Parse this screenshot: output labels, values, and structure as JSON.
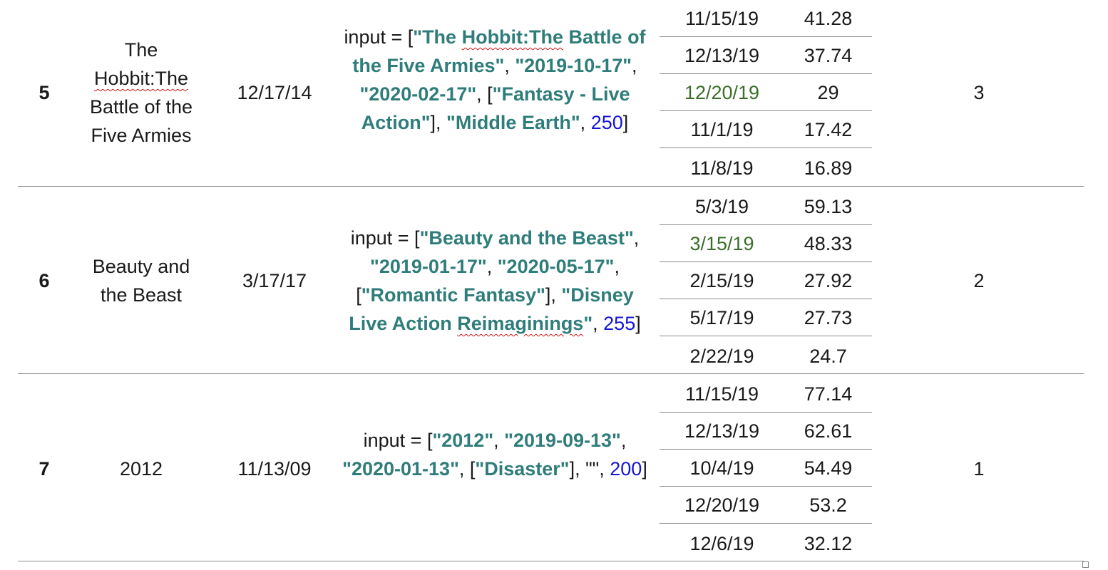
{
  "rows": [
    {
      "num": "5",
      "title_parts": [
        "The",
        "Hobbit:The",
        "Battle of the",
        "Five Armies"
      ],
      "date": "12/17/14",
      "code": {
        "p1": "input = [",
        "s1a": "\"The ",
        "s1b": "Hobbit:The",
        "s1c": " Battle of the Five Armies\"",
        "sep1": ", ",
        "s2": "\"2019-10-17\"",
        "sep2": ", ",
        "s3": "\"2020-02-17\"",
        "sep3": ", [",
        "s4": "\"Fantasy - Live Action\"",
        "sep4": "], ",
        "s5": "\"Middle Earth\"",
        "sep5": ", ",
        "n": "250",
        "end": "]"
      },
      "sub": [
        {
          "date": "11/15/19",
          "value": "41.28"
        },
        {
          "date": "12/13/19",
          "value": "37.74"
        },
        {
          "date": "12/20/19",
          "value": "29",
          "highlight": true
        },
        {
          "date": "11/1/19",
          "value": "17.42"
        },
        {
          "date": "11/8/19",
          "value": "16.89"
        }
      ],
      "rank": "3"
    },
    {
      "num": "6",
      "title_parts": [
        "Beauty and",
        "the Beast"
      ],
      "date": "3/17/17",
      "code": {
        "p1": "input = [",
        "s1": "\"Beauty and the Beast\"",
        "sep1": ", ",
        "s2": "\"2019-01-17\"",
        "sep2": ", ",
        "s3": "\"2020-05-17\"",
        "sep3": ", [",
        "s4": "\"Romantic Fantasy\"",
        "sep4": "], ",
        "s5a": "\"Disney Live Action ",
        "s5b": "Reimaginings",
        "s5c": "\"",
        "sep5": ", ",
        "n": "255",
        "end": "]"
      },
      "sub": [
        {
          "date": "5/3/19",
          "value": "59.13"
        },
        {
          "date": "3/15/19",
          "value": "48.33",
          "highlight": true
        },
        {
          "date": "2/15/19",
          "value": "27.92"
        },
        {
          "date": "5/17/19",
          "value": "27.73"
        },
        {
          "date": "2/22/19",
          "value": "24.7"
        }
      ],
      "rank": "2"
    },
    {
      "num": "7",
      "title_parts": [
        "2012"
      ],
      "date": "11/13/09",
      "code": {
        "p1": "input = [",
        "s1": "\"2012\"",
        "sep1": ", ",
        "s2": "\"2019-09-13\"",
        "sep2": ", ",
        "s3": "\"2020-01-13\"",
        "sep3": ", [",
        "s4": "\"Disaster\"",
        "sep4": "], ",
        "s5": "\"\"",
        "sep5": ", ",
        "n": "200",
        "end": "]"
      },
      "sub": [
        {
          "date": "11/15/19",
          "value": "77.14"
        },
        {
          "date": "12/13/19",
          "value": "62.61"
        },
        {
          "date": "10/4/19",
          "value": "54.49"
        },
        {
          "date": "12/20/19",
          "value": "53.2"
        },
        {
          "date": "12/6/19",
          "value": "32.12"
        }
      ],
      "rank": "1"
    }
  ]
}
